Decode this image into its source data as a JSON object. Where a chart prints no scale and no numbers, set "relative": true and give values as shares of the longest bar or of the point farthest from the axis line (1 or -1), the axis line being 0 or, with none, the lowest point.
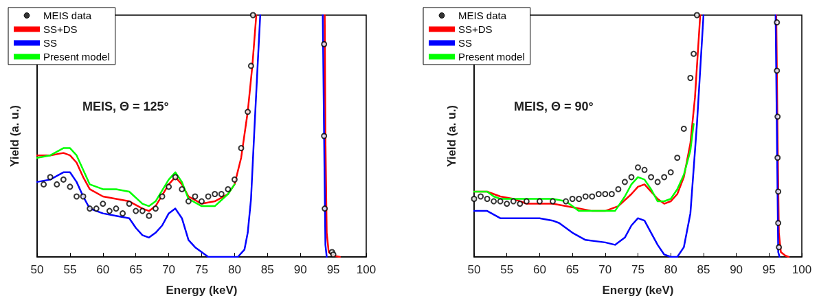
{
  "chart_data": [
    {
      "type": "line",
      "relative": true,
      "xlabel": "Energy (keV)",
      "ylabel": "Yield (a. u.)",
      "xlim": [
        50,
        100
      ],
      "xticks": [
        50,
        55,
        60,
        65,
        70,
        75,
        80,
        85,
        90,
        95,
        100
      ],
      "tick_labels": "x",
      "grid": false,
      "legend": "top left",
      "annotations": [
        "MEIS, Θ = 125°"
      ],
      "series": [
        {
          "name": "MEIS data",
          "type": "scatter",
          "marker": "circle",
          "color": "#000000",
          "x": [
            51,
            52,
            53,
            54,
            55,
            56,
            57,
            58,
            59,
            60,
            61,
            62,
            63,
            64,
            65,
            66,
            67,
            68,
            69,
            70,
            71,
            72,
            73,
            74,
            75,
            76,
            77,
            78,
            79,
            80,
            81,
            82,
            82.5,
            82.8,
            93.6,
            93.6,
            93.7,
            94.8,
            95
          ],
          "values": [
            0.3,
            0.33,
            0.3,
            0.32,
            0.29,
            0.25,
            0.25,
            0.2,
            0.2,
            0.22,
            0.19,
            0.2,
            0.18,
            0.22,
            0.19,
            0.19,
            0.17,
            0.2,
            0.25,
            0.29,
            0.33,
            0.28,
            0.23,
            0.25,
            0.23,
            0.25,
            0.26,
            0.26,
            0.28,
            0.32,
            0.45,
            0.6,
            0.79,
            1.0,
            0.88,
            0.5,
            0.2,
            0.02,
            0.01
          ]
        },
        {
          "name": "SS+DS",
          "color": "#ff0000",
          "marker": "none",
          "line_style": "solid",
          "x": [
            50,
            52,
            54,
            55,
            56,
            57,
            58,
            60,
            62,
            64,
            66,
            67,
            68,
            70,
            71,
            72,
            73,
            75,
            77,
            79,
            80,
            81,
            82,
            82.7,
            83.3,
            88,
            93.7,
            93.8,
            94.0,
            94.3,
            95,
            96
          ],
          "values": [
            0.42,
            0.42,
            0.43,
            0.42,
            0.39,
            0.33,
            0.28,
            0.25,
            0.24,
            0.23,
            0.2,
            0.19,
            0.21,
            0.3,
            0.33,
            0.3,
            0.25,
            0.22,
            0.23,
            0.26,
            0.3,
            0.41,
            0.6,
            0.79,
            1.0,
            null,
            1.0,
            0.5,
            0.1,
            0.02,
            0.005,
            0
          ]
        },
        {
          "name": "SS",
          "color": "#0000ff",
          "marker": "none",
          "line_style": "solid",
          "x": [
            50,
            52,
            54,
            55,
            56,
            57,
            58,
            60,
            62,
            64,
            65,
            66,
            67,
            68,
            69,
            70,
            71,
            72,
            73,
            74,
            75,
            76,
            78,
            80.5,
            81.5,
            82,
            82.5,
            83,
            83.5,
            83.9,
            88,
            93.4,
            93.6,
            93.8,
            94
          ],
          "values": [
            0.31,
            0.32,
            0.35,
            0.35,
            0.31,
            0.25,
            0.2,
            0.18,
            0.17,
            0.16,
            0.12,
            0.09,
            0.08,
            0.1,
            0.13,
            0.18,
            0.2,
            0.16,
            0.07,
            0.04,
            0.02,
            0.0,
            0,
            0,
            0.03,
            0.1,
            0.24,
            0.52,
            0.79,
            1.0,
            null,
            1.0,
            0.5,
            0.05,
            0
          ]
        },
        {
          "name": "Present model",
          "color": "#00ff00",
          "marker": "none",
          "line_style": "solid",
          "x": [
            50,
            52,
            54,
            55,
            56,
            57,
            58,
            60,
            62,
            64,
            66,
            67,
            68,
            70,
            71,
            72,
            73,
            75,
            77,
            79,
            80
          ],
          "values": [
            0.41,
            0.42,
            0.45,
            0.45,
            0.42,
            0.36,
            0.3,
            0.28,
            0.28,
            0.27,
            0.22,
            0.21,
            0.23,
            0.32,
            0.35,
            0.31,
            0.24,
            0.21,
            0.21,
            0.26,
            0.3
          ]
        }
      ]
    },
    {
      "type": "line",
      "relative": true,
      "xlabel": "Energy (keV)",
      "ylabel": "Yield (a. u.)",
      "xlim": [
        50,
        100
      ],
      "xticks": [
        50,
        55,
        60,
        65,
        70,
        75,
        80,
        85,
        90,
        95,
        100
      ],
      "tick_labels": "x",
      "grid": false,
      "legend": "top left",
      "annotations": [
        "MEIS, Θ = 90°"
      ],
      "series": [
        {
          "name": "MEIS data",
          "type": "scatter",
          "marker": "circle",
          "color": "#000000",
          "x": [
            50,
            51,
            52,
            53,
            54,
            55,
            56,
            57,
            58,
            60,
            62,
            64,
            65,
            66,
            67,
            68,
            69,
            70,
            71,
            72,
            73,
            74,
            75,
            76,
            77,
            78,
            79,
            80,
            81,
            82,
            83,
            83.5,
            84,
            96.2,
            96.2,
            96.3,
            96.3,
            96.4,
            96.4,
            96.5
          ],
          "values": [
            0.24,
            0.25,
            0.24,
            0.23,
            0.23,
            0.22,
            0.23,
            0.22,
            0.23,
            0.23,
            0.23,
            0.23,
            0.24,
            0.24,
            0.25,
            0.25,
            0.26,
            0.26,
            0.26,
            0.28,
            0.31,
            0.33,
            0.37,
            0.36,
            0.33,
            0.31,
            0.33,
            0.35,
            0.41,
            0.53,
            0.74,
            0.84,
            1.0,
            0.97,
            0.77,
            0.58,
            0.41,
            0.27,
            0.14,
            0.04
          ]
        },
        {
          "name": "SS+DS",
          "color": "#ff0000",
          "marker": "none",
          "line_style": "solid",
          "x": [
            50,
            52,
            54,
            56,
            58,
            60,
            62,
            64,
            66,
            68,
            70,
            72,
            74,
            75,
            76,
            77,
            78,
            79,
            80,
            81,
            82,
            83,
            83.7,
            84.5,
            90,
            96.1,
            96.3,
            96.5,
            96.8,
            97.5,
            98
          ],
          "values": [
            0.27,
            0.27,
            0.25,
            0.24,
            0.22,
            0.22,
            0.22,
            0.21,
            0.2,
            0.19,
            0.19,
            0.21,
            0.26,
            0.29,
            0.3,
            0.27,
            0.24,
            0.22,
            0.23,
            0.26,
            0.33,
            0.47,
            0.66,
            1.0,
            null,
            1.0,
            0.5,
            0.1,
            0.02,
            0.005,
            0
          ]
        },
        {
          "name": "SS",
          "color": "#0000ff",
          "marker": "none",
          "line_style": "solid",
          "x": [
            50,
            51,
            52,
            54,
            56,
            60,
            62,
            63,
            65,
            67,
            70,
            71.5,
            73,
            74,
            75,
            76,
            77,
            78,
            79,
            80,
            81,
            82,
            83,
            84,
            85,
            90,
            96,
            96.2,
            96.4,
            96.6
          ],
          "values": [
            0.19,
            0.19,
            0.19,
            0.16,
            0.16,
            0.16,
            0.15,
            0.14,
            0.1,
            0.07,
            0.06,
            0.05,
            0.08,
            0.13,
            0.16,
            0.15,
            0.1,
            0.05,
            0.01,
            0,
            0,
            0.04,
            0.18,
            0.55,
            1.0,
            null,
            1.0,
            0.5,
            0.02,
            0
          ]
        },
        {
          "name": "Present model",
          "color": "#00ff00",
          "marker": "none",
          "line_style": "solid",
          "x": [
            50,
            51,
            52,
            53,
            54,
            56,
            58,
            60,
            62,
            64,
            65,
            66,
            68,
            70,
            71.5,
            73,
            74,
            75,
            76,
            77,
            78,
            79,
            80,
            81,
            82,
            83,
            83.5
          ],
          "values": [
            0.27,
            0.27,
            0.27,
            0.25,
            0.24,
            0.24,
            0.24,
            0.24,
            0.24,
            0.23,
            0.21,
            0.19,
            0.19,
            0.19,
            0.19,
            0.25,
            0.3,
            0.33,
            0.32,
            0.28,
            0.23,
            0.23,
            0.24,
            0.28,
            0.34,
            0.44,
            0.55
          ]
        }
      ]
    }
  ]
}
